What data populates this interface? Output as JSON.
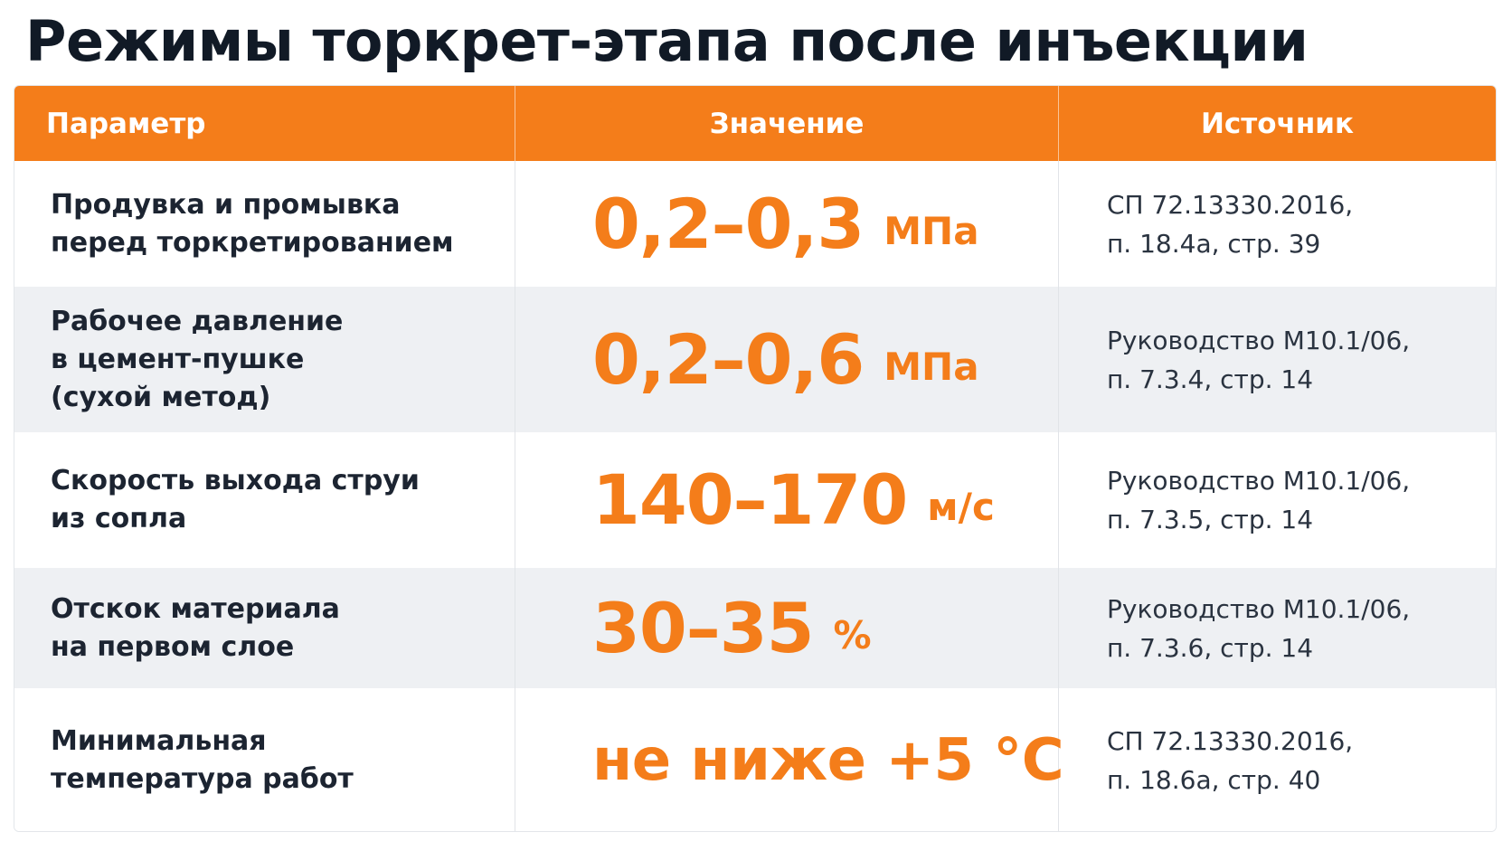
{
  "title": "Режимы торкрет-этапа после инъекции",
  "header": {
    "param": "Параметр",
    "value": "Значение",
    "source": "Источник"
  },
  "rows": [
    {
      "param": "Продувка и промывка\nперед торкретированием",
      "value": "0,2–0,3",
      "unit": "МПа",
      "source": "СП 72.13330.2016,\nп. 18.4а, стр. 39"
    },
    {
      "param": "Рабочее давление\nв цемент-пушке\n(сухой метод)",
      "value": "0,2–0,6",
      "unit": "МПа",
      "source": "Руководство М10.1/06,\nп. 7.3.4, стр. 14"
    },
    {
      "param": "Скорость выхода струи\nиз сопла",
      "value": "140–170",
      "unit": "м/с",
      "source": "Руководство М10.1/06,\nп. 7.3.5, стр. 14"
    },
    {
      "param": "Отскок материала\nна первом слое",
      "value": "30–35",
      "unit": "%",
      "source": "Руководство М10.1/06,\nп. 7.3.6, стр. 14"
    },
    {
      "param": "Минимальная\nтемпература работ",
      "value": "не ниже +5 °C",
      "unit": "",
      "source": "СП 72.13330.2016,\nп. 18.6а, стр. 40"
    }
  ],
  "colors": {
    "accent": "#f47d1a",
    "title": "#111a26",
    "text": "#1c2431",
    "row_alt": "#eef0f3"
  }
}
